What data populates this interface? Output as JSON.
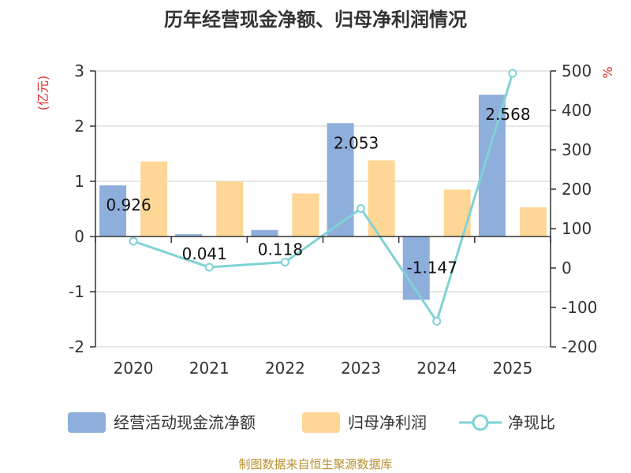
{
  "title": "历年经营现金净额、归母净利润情况",
  "source": "制图数据来自恒生聚源数据库",
  "chart_data": {
    "type": "bar",
    "categories": [
      "2020",
      "2021",
      "2022",
      "2023",
      "2024",
      "2025"
    ],
    "y_left": {
      "unit": "(亿元)",
      "min": -2,
      "max": 3,
      "ticks": [
        "3",
        "2",
        "1",
        "0",
        "-1",
        "-2"
      ]
    },
    "y_right": {
      "unit": "%",
      "min": -200,
      "max": 500,
      "ticks": [
        "500",
        "400",
        "300",
        "200",
        "100",
        "0",
        "-100",
        "-200"
      ]
    },
    "series": [
      {
        "name": "经营活动现金流净额",
        "type": "bar",
        "axis": "left",
        "color": "#8eaedc",
        "values": [
          0.926,
          0.041,
          0.118,
          2.053,
          -1.147,
          2.568
        ],
        "labels": [
          "0.926",
          "0.041",
          "0.118",
          "2.053",
          "-1.147",
          "2.568"
        ]
      },
      {
        "name": "归母净利润",
        "type": "bar",
        "axis": "left",
        "color": "#fed695",
        "values": [
          1.36,
          1.0,
          0.78,
          1.38,
          0.85,
          0.53
        ]
      },
      {
        "name": "净现比",
        "type": "line",
        "axis": "right",
        "color": "#7fd3d6",
        "values": [
          68,
          2,
          15,
          151,
          -135,
          494
        ]
      }
    ],
    "grid": true,
    "legend_position": "bottom"
  }
}
